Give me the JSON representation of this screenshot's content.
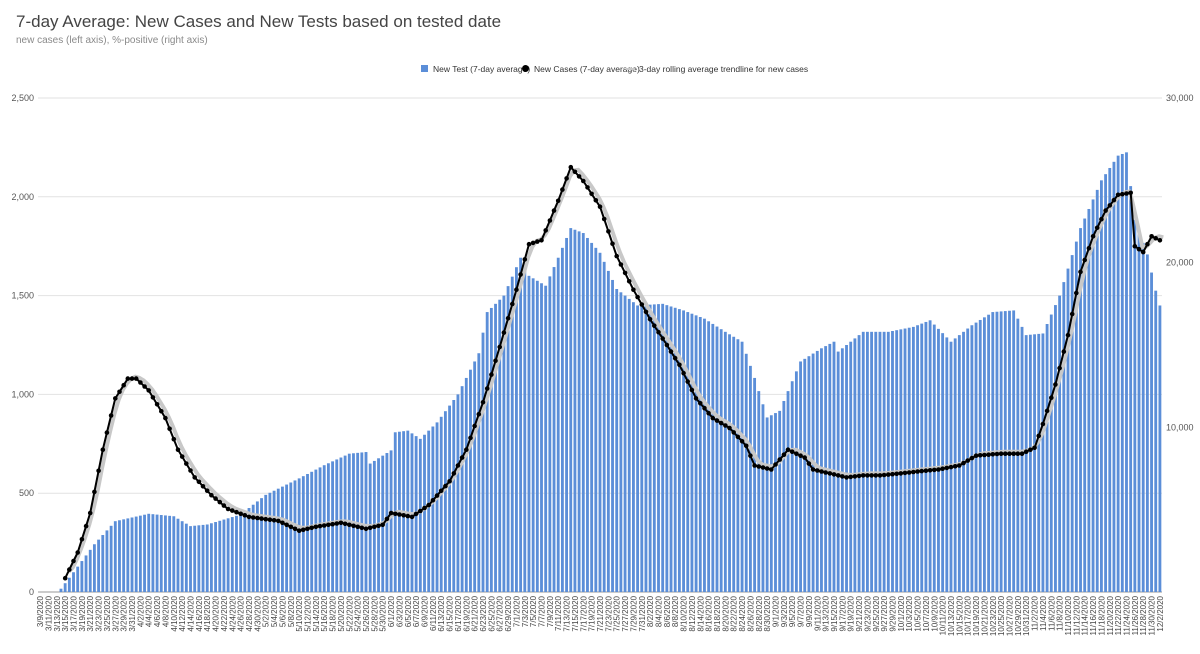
{
  "chart_data": {
    "type": "bar",
    "title": "7-day Average: New Cases and New Tests based on tested date",
    "subtitle": "new cases (left axis), %-positive (right axis)",
    "legend": {
      "position": "top",
      "entries": [
        {
          "name": "New Test (7-day average)",
          "color": "#5b8ed8",
          "marker": "square"
        },
        {
          "name": "New Cases (7-day average)",
          "color": "#000000",
          "marker": "dot"
        },
        {
          "name": "3-day rolling average trendline for new cases",
          "color": "#c8c8c8",
          "marker": "line"
        }
      ]
    },
    "left_axis": {
      "min": 0,
      "max": 2500,
      "ticks": [
        "0",
        "500",
        "1,000",
        "1,500",
        "2,000",
        "2,500"
      ]
    },
    "right_axis": {
      "min": 0,
      "max": 30000,
      "ticks": [
        "10,000",
        "20,000",
        "30,000"
      ]
    },
    "grid": true,
    "x_start": "3/9/2020",
    "x_end": "12/2/2020",
    "x_tick_labels": [
      "3/9/2020",
      "3/11/2020",
      "3/13/2020",
      "3/15/2020",
      "3/17/2020",
      "3/19/2020",
      "3/21/2020",
      "3/23/2020",
      "3/25/2020",
      "3/27/2020",
      "3/29/2020",
      "3/31/2020",
      "4/2/2020",
      "4/4/2020",
      "4/6/2020",
      "4/8/2020",
      "4/10/2020",
      "4/12/2020",
      "4/14/2020",
      "4/16/2020",
      "4/18/2020",
      "4/20/2020",
      "4/22/2020",
      "4/24/2020",
      "4/26/2020",
      "4/28/2020",
      "4/30/2020",
      "5/2/2020",
      "5/4/2020",
      "5/6/2020",
      "5/8/2020",
      "5/10/2020",
      "5/12/2020",
      "5/14/2020",
      "5/16/2020",
      "5/18/2020",
      "5/20/2020",
      "5/22/2020",
      "5/24/2020",
      "5/26/2020",
      "5/28/2020",
      "5/30/2020",
      "6/1/2020",
      "6/3/2020",
      "6/5/2020",
      "6/7/2020",
      "6/9/2020",
      "6/11/2020",
      "6/13/2020",
      "6/15/2020",
      "6/17/2020",
      "6/19/2020",
      "6/21/2020",
      "6/23/2020",
      "6/25/2020",
      "6/27/2020",
      "6/29/2020",
      "7/1/2020",
      "7/3/2020",
      "7/5/2020",
      "7/7/2020",
      "7/9/2020",
      "7/11/2020",
      "7/13/2020",
      "7/15/2020",
      "7/17/2020",
      "7/19/2020",
      "7/21/2020",
      "7/23/2020",
      "7/25/2020",
      "7/27/2020",
      "7/29/2020",
      "7/31/2020",
      "8/2/2020",
      "8/4/2020",
      "8/6/2020",
      "8/8/2020",
      "8/10/2020",
      "8/12/2020",
      "8/14/2020",
      "8/16/2020",
      "8/18/2020",
      "8/20/2020",
      "8/22/2020",
      "8/24/2020",
      "8/26/2020",
      "8/28/2020",
      "8/30/2020",
      "9/1/2020",
      "9/3/2020",
      "9/5/2020",
      "9/7/2020",
      "9/9/2020",
      "9/11/2020",
      "9/13/2020",
      "9/15/2020",
      "9/17/2020",
      "9/19/2020",
      "9/21/2020",
      "9/23/2020",
      "9/25/2020",
      "9/27/2020",
      "9/29/2020",
      "10/1/2020",
      "10/3/2020",
      "10/5/2020",
      "10/7/2020",
      "10/9/2020",
      "10/11/2020",
      "10/13/2020",
      "10/15/2020",
      "10/17/2020",
      "10/19/2020",
      "10/21/2020",
      "10/23/2020",
      "10/25/2020",
      "10/27/2020",
      "10/29/2020",
      "10/31/2020",
      "11/2/2020",
      "11/4/2020",
      "11/6/2020",
      "11/8/2020",
      "11/10/2020",
      "11/12/2020",
      "11/14/2020",
      "11/16/2020",
      "11/18/2020",
      "11/20/2020",
      "11/22/2020",
      "11/24/2020",
      "11/26/2020",
      "11/28/2020",
      "11/30/2020",
      "12/2/2020"
    ],
    "series": [
      {
        "name": "New Test (7-day average)",
        "axis": "right",
        "color": "#5b8ed8",
        "keypoints": [
          [
            "3/9/2020",
            0
          ],
          [
            "3/13/2020",
            0
          ],
          [
            "3/14/2020",
            200
          ],
          [
            "3/17/2020",
            1200
          ],
          [
            "3/22/2020",
            2900
          ],
          [
            "3/27/2020",
            4300
          ],
          [
            "4/4/2020",
            4750
          ],
          [
            "4/10/2020",
            4600
          ],
          [
            "4/14/2020",
            4000
          ],
          [
            "4/18/2020",
            4100
          ],
          [
            "4/26/2020",
            4700
          ],
          [
            "5/2/2020",
            5900
          ],
          [
            "5/10/2020",
            6900
          ],
          [
            "5/16/2020",
            7700
          ],
          [
            "5/22/2020",
            8400
          ],
          [
            "5/26/2020",
            8500
          ],
          [
            "5/27/2020",
            7800
          ],
          [
            "6/1/2020",
            8600
          ],
          [
            "6/2/2020",
            9700
          ],
          [
            "6/5/2020",
            9800
          ],
          [
            "6/8/2020",
            9300
          ],
          [
            "6/12/2020",
            10300
          ],
          [
            "6/17/2020",
            12000
          ],
          [
            "6/22/2020",
            14500
          ],
          [
            "6/24/2020",
            17000
          ],
          [
            "6/28/2020",
            18000
          ],
          [
            "7/2/2020",
            20300
          ],
          [
            "7/4/2020",
            19200
          ],
          [
            "7/8/2020",
            18600
          ],
          [
            "7/11/2020",
            20300
          ],
          [
            "7/14/2020",
            22100
          ],
          [
            "7/17/2020",
            21800
          ],
          [
            "7/21/2020",
            20600
          ],
          [
            "7/25/2020",
            18400
          ],
          [
            "7/30/2020",
            17400
          ],
          [
            "8/5/2020",
            17500
          ],
          [
            "8/10/2020",
            17100
          ],
          [
            "8/15/2020",
            16600
          ],
          [
            "8/20/2020",
            15800
          ],
          [
            "8/24/2020",
            15200
          ],
          [
            "8/27/2020",
            13000
          ],
          [
            "8/30/2020",
            10600
          ],
          [
            "9/2/2020",
            11000
          ],
          [
            "9/7/2020",
            14000
          ],
          [
            "9/12/2020",
            14800
          ],
          [
            "9/15/2020",
            15200
          ],
          [
            "9/16/2020",
            14600
          ],
          [
            "9/22/2020",
            15800
          ],
          [
            "9/28/2020",
            15800
          ],
          [
            "10/4/2020",
            16100
          ],
          [
            "10/8/2020",
            16500
          ],
          [
            "10/13/2020",
            15200
          ],
          [
            "10/18/2020",
            16200
          ],
          [
            "10/23/2020",
            17000
          ],
          [
            "10/28/2020",
            17100
          ],
          [
            "10/31/2020",
            15600
          ],
          [
            "11/4/2020",
            15700
          ],
          [
            "11/8/2020",
            18000
          ],
          [
            "11/13/2020",
            22100
          ],
          [
            "11/18/2020",
            25000
          ],
          [
            "11/22/2020",
            26500
          ],
          [
            "11/24/2020",
            26700
          ],
          [
            "11/26/2020",
            22600
          ],
          [
            "11/29/2020",
            20500
          ],
          [
            "12/1/2020",
            18300
          ],
          [
            "12/2/2020",
            17400
          ]
        ]
      },
      {
        "name": "New Cases (7-day average)",
        "axis": "left",
        "color": "#000000",
        "keypoints": [
          [
            "3/15/2020",
            70
          ],
          [
            "3/18/2020",
            200
          ],
          [
            "3/21/2020",
            400
          ],
          [
            "3/24/2020",
            720
          ],
          [
            "3/27/2020",
            980
          ],
          [
            "3/30/2020",
            1080
          ],
          [
            "4/1/2020",
            1080
          ],
          [
            "4/4/2020",
            1020
          ],
          [
            "4/8/2020",
            880
          ],
          [
            "4/11/2020",
            720
          ],
          [
            "4/15/2020",
            580
          ],
          [
            "4/19/2020",
            490
          ],
          [
            "4/23/2020",
            420
          ],
          [
            "4/28/2020",
            380
          ],
          [
            "5/5/2020",
            360
          ],
          [
            "5/10/2020",
            310
          ],
          [
            "5/14/2020",
            330
          ],
          [
            "5/20/2020",
            350
          ],
          [
            "5/26/2020",
            320
          ],
          [
            "5/30/2020",
            340
          ],
          [
            "6/1/2020",
            400
          ],
          [
            "6/6/2020",
            380
          ],
          [
            "6/10/2020",
            440
          ],
          [
            "6/15/2020",
            560
          ],
          [
            "6/19/2020",
            720
          ],
          [
            "6/23/2020",
            960
          ],
          [
            "6/27/2020",
            1240
          ],
          [
            "7/1/2020",
            1530
          ],
          [
            "7/4/2020",
            1760
          ],
          [
            "7/7/2020",
            1780
          ],
          [
            "7/11/2020",
            1980
          ],
          [
            "7/14/2020",
            2150
          ],
          [
            "7/17/2020",
            2080
          ],
          [
            "7/21/2020",
            1950
          ],
          [
            "7/25/2020",
            1700
          ],
          [
            "7/29/2020",
            1530
          ],
          [
            "8/2/2020",
            1380
          ],
          [
            "8/6/2020",
            1250
          ],
          [
            "8/9/2020",
            1150
          ],
          [
            "8/13/2020",
            980
          ],
          [
            "8/17/2020",
            880
          ],
          [
            "8/21/2020",
            830
          ],
          [
            "8/25/2020",
            740
          ],
          [
            "8/27/2020",
            640
          ],
          [
            "8/31/2020",
            620
          ],
          [
            "9/4/2020",
            720
          ],
          [
            "9/8/2020",
            680
          ],
          [
            "9/10/2020",
            620
          ],
          [
            "9/14/2020",
            600
          ],
          [
            "9/18/2020",
            580
          ],
          [
            "9/22/2020",
            590
          ],
          [
            "9/26/2020",
            590
          ],
          [
            "10/1/2020",
            600
          ],
          [
            "10/5/2020",
            610
          ],
          [
            "10/10/2020",
            620
          ],
          [
            "10/15/2020",
            640
          ],
          [
            "10/19/2020",
            690
          ],
          [
            "10/25/2020",
            700
          ],
          [
            "10/30/2020",
            700
          ],
          [
            "11/2/2020",
            730
          ],
          [
            "11/4/2020",
            850
          ],
          [
            "11/7/2020",
            1050
          ],
          [
            "11/10/2020",
            1300
          ],
          [
            "11/13/2020",
            1620
          ],
          [
            "11/16/2020",
            1800
          ],
          [
            "11/19/2020",
            1930
          ],
          [
            "11/22/2020",
            2010
          ],
          [
            "11/25/2020",
            2020
          ],
          [
            "11/26/2020",
            1750
          ],
          [
            "11/28/2020",
            1720
          ],
          [
            "11/30/2020",
            1800
          ],
          [
            "12/2/2020",
            1780
          ]
        ]
      },
      {
        "name": "3-day rolling average trendline for new cases",
        "axis": "left",
        "color": "#c8c8c8",
        "smoothing_days": 3,
        "derived_from": "New Cases (7-day average)"
      }
    ]
  }
}
